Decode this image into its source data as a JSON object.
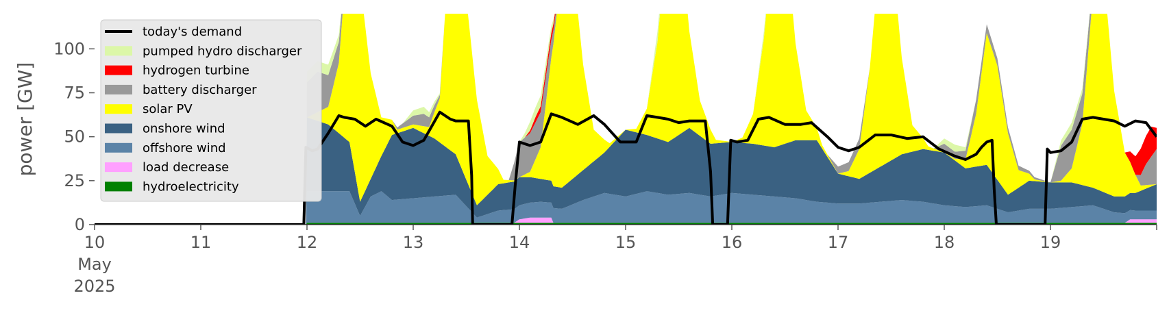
{
  "chart_data": {
    "type": "area",
    "ylabel": "power [GW]",
    "xlabel": "",
    "ylim": [
      0,
      120
    ],
    "xlim": [
      0,
      10
    ],
    "yticks": [
      0,
      25,
      50,
      75,
      100
    ],
    "xticks": [
      {
        "value": 0,
        "lines": [
          "10",
          "May",
          "2025"
        ]
      },
      {
        "value": 1,
        "lines": [
          "11"
        ]
      },
      {
        "value": 2,
        "lines": [
          "12"
        ]
      },
      {
        "value": 3,
        "lines": [
          "13"
        ]
      },
      {
        "value": 4,
        "lines": [
          "14"
        ]
      },
      {
        "value": 5,
        "lines": [
          "15"
        ]
      },
      {
        "value": 6,
        "lines": [
          "16"
        ]
      },
      {
        "value": 7,
        "lines": [
          "17"
        ]
      },
      {
        "value": 8,
        "lines": [
          "18"
        ]
      },
      {
        "value": 9,
        "lines": [
          "19"
        ]
      }
    ],
    "legend_position": "top-left",
    "grid": false,
    "legend": [
      {
        "label": "today's demand",
        "kind": "line",
        "color": "#000000"
      },
      {
        "label": "pumped hydro discharger",
        "kind": "patch",
        "color": "#dcf7a8"
      },
      {
        "label": "hydrogen turbine",
        "kind": "patch",
        "color": "#ff0000"
      },
      {
        "label": "battery discharger",
        "kind": "patch",
        "color": "#999999"
      },
      {
        "label": "solar PV",
        "kind": "patch",
        "color": "#ffff00"
      },
      {
        "label": "onshore wind",
        "kind": "patch",
        "color": "#3a6182"
      },
      {
        "label": "offshore wind",
        "kind": "patch",
        "color": "#5b83a7"
      },
      {
        "label": "load decrease",
        "kind": "patch",
        "color": "#ffa0ff"
      },
      {
        "label": "hydroelectricity",
        "kind": "patch",
        "color": "#008000"
      }
    ],
    "stack_series": [
      {
        "name": "hydroelectricity",
        "color": "#008000",
        "x": [
          0,
          1.99,
          2.0,
          4.0,
          6.0,
          8.0,
          9.0,
          10.0
        ],
        "y": [
          0,
          0,
          1,
          1,
          1,
          1,
          1,
          1
        ]
      },
      {
        "name": "load decrease",
        "color": "#ffa0ff",
        "x": [
          0,
          3.95,
          4.0,
          4.1,
          4.3,
          4.32,
          9.7,
          9.75,
          9.85,
          10.0
        ],
        "y": [
          0,
          0,
          2,
          3,
          3,
          0,
          0,
          2,
          2,
          2
        ]
      },
      {
        "name": "offshore wind",
        "color": "#5b83a7",
        "x": [
          0,
          1.99,
          2.0,
          2.2,
          2.4,
          2.5,
          2.6,
          2.7,
          2.8,
          3.0,
          3.2,
          3.4,
          3.6,
          3.8,
          4.0,
          4.2,
          4.4,
          4.6,
          4.8,
          5.0,
          5.2,
          5.4,
          5.6,
          5.8,
          6.0,
          6.2,
          6.4,
          6.6,
          6.8,
          7.0,
          7.2,
          7.4,
          7.6,
          7.8,
          8.0,
          8.2,
          8.4,
          8.6,
          8.8,
          9.0,
          9.2,
          9.4,
          9.6,
          9.8,
          10.0
        ],
        "y": [
          0,
          0,
          18,
          18,
          18,
          4,
          15,
          18,
          13,
          14,
          15,
          16,
          3,
          7,
          8,
          9,
          8,
          13,
          17,
          15,
          18,
          16,
          17,
          15,
          17,
          16,
          15,
          14,
          12,
          11,
          11,
          12,
          13,
          12,
          10,
          9,
          10,
          6,
          8,
          8,
          9,
          10,
          6,
          5,
          5
        ]
      },
      {
        "name": "onshore wind",
        "color": "#3a6182",
        "x": [
          0,
          1.99,
          2.0,
          2.2,
          2.4,
          2.5,
          2.6,
          2.7,
          2.8,
          3.0,
          3.2,
          3.4,
          3.6,
          3.8,
          4.0,
          4.2,
          4.4,
          4.6,
          4.8,
          5.0,
          5.2,
          5.4,
          5.6,
          5.8,
          6.0,
          6.2,
          6.4,
          6.6,
          6.8,
          7.0,
          7.2,
          7.4,
          7.6,
          7.8,
          8.0,
          8.2,
          8.4,
          8.6,
          8.8,
          9.0,
          9.2,
          9.4,
          9.6,
          9.8,
          10.0
        ],
        "y": [
          0,
          0,
          42,
          38,
          28,
          8,
          10,
          20,
          37,
          40,
          33,
          23,
          7,
          15,
          16,
          13,
          12,
          17,
          23,
          38,
          32,
          30,
          37,
          30,
          29,
          29,
          28,
          33,
          35,
          17,
          14,
          20,
          26,
          30,
          30,
          22,
          23,
          10,
          16,
          15,
          14,
          10,
          9,
          10,
          15
        ]
      },
      {
        "name": "solar PV",
        "color": "#ffff00",
        "x": [
          0,
          1.99,
          2.0,
          2.2,
          2.3,
          2.4,
          2.5,
          2.6,
          2.7,
          2.85,
          3.0,
          3.15,
          3.25,
          3.35,
          3.45,
          3.6,
          3.7,
          3.85,
          4.0,
          4.1,
          4.2,
          4.3,
          4.4,
          4.5,
          4.6,
          4.7,
          4.85,
          5.0,
          5.1,
          5.2,
          5.3,
          5.4,
          5.5,
          5.6,
          5.7,
          5.85,
          6.0,
          6.1,
          6.2,
          6.3,
          6.4,
          6.5,
          6.6,
          6.7,
          6.85,
          7.0,
          7.1,
          7.2,
          7.3,
          7.4,
          7.5,
          7.6,
          7.7,
          7.85,
          8.0,
          8.1,
          8.2,
          8.3,
          8.4,
          8.5,
          8.6,
          8.7,
          8.85,
          9.0,
          9.1,
          9.2,
          9.3,
          9.4,
          9.5,
          9.6,
          9.7,
          9.85,
          10.0
        ],
        "y": [
          0,
          0,
          0,
          10,
          40,
          125,
          125,
          60,
          22,
          2,
          2,
          5,
          25,
          125,
          125,
          60,
          22,
          2,
          0,
          3,
          18,
          70,
          125,
          125,
          60,
          18,
          2,
          0,
          2,
          15,
          55,
          125,
          125,
          55,
          20,
          2,
          0,
          3,
          17,
          60,
          125,
          125,
          55,
          17,
          2,
          0,
          3,
          17,
          60,
          125,
          125,
          55,
          15,
          2,
          0,
          1,
          5,
          30,
          75,
          65,
          35,
          10,
          1,
          0,
          1,
          8,
          35,
          110,
          125,
          60,
          25,
          3,
          0
        ]
      },
      {
        "name": "battery discharger",
        "color": "#999999",
        "x": [
          0,
          1.99,
          2.0,
          2.1,
          2.2,
          2.3,
          2.4,
          2.6,
          2.8,
          3.0,
          3.1,
          3.2,
          3.3,
          3.5,
          3.9,
          4.0,
          4.1,
          4.2,
          4.3,
          4.4,
          6.9,
          7.0,
          7.1,
          7.2,
          7.3,
          7.9,
          8.0,
          8.1,
          8.2,
          8.3,
          8.4,
          9.0,
          9.1,
          9.2,
          9.3,
          9.4,
          9.5,
          9.8,
          9.9,
          10.0
        ],
        "y": [
          0,
          0,
          20,
          23,
          18,
          12,
          0,
          0,
          0,
          5,
          7,
          4,
          0,
          0,
          0,
          20,
          22,
          20,
          10,
          0,
          0,
          4,
          5,
          6,
          0,
          0,
          5,
          4,
          5,
          8,
          5,
          0,
          20,
          22,
          17,
          8,
          0,
          0,
          12,
          20
        ]
      },
      {
        "name": "hydrogen turbine",
        "color": "#ff0000",
        "x": [
          0,
          4.05,
          4.15,
          4.3,
          4.45,
          9.7,
          9.75,
          9.85,
          9.95,
          10.0
        ],
        "y": [
          0,
          0,
          3,
          4,
          0,
          0,
          6,
          15,
          17,
          12
        ]
      },
      {
        "name": "pumped hydro discharger",
        "color": "#dcf7a8",
        "x": [
          0,
          1.99,
          2.0,
          2.1,
          2.2,
          2.3,
          2.4,
          2.9,
          3.0,
          3.1,
          3.2,
          3.3,
          4.0,
          4.1,
          4.2,
          4.3,
          4.35,
          5.2,
          5.3,
          5.4,
          5.5,
          6.2,
          6.3,
          6.4,
          7.4,
          7.9,
          8.0,
          8.1,
          8.2,
          8.3,
          9.0,
          9.1,
          9.2,
          9.3,
          9.4,
          10.0
        ],
        "y": [
          0,
          0,
          6,
          6,
          6,
          4,
          0,
          0,
          3,
          4,
          2,
          0,
          0,
          5,
          6,
          4,
          0,
          0,
          6,
          4,
          0,
          0,
          4,
          0,
          0,
          0,
          3,
          4,
          2,
          0,
          0,
          3,
          4,
          3,
          0,
          0
        ]
      }
    ],
    "series": [
      {
        "name": "today's demand",
        "color": "#000000",
        "x": [
          0,
          1.97,
          1.99,
          2.05,
          2.1,
          2.2,
          2.3,
          2.35,
          2.45,
          2.55,
          2.65,
          2.8,
          2.9,
          3.0,
          3.1,
          3.25,
          3.35,
          3.4,
          3.5,
          3.52,
          3.55,
          3.56,
          3.93,
          3.96,
          4.0,
          4.1,
          4.2,
          4.3,
          4.4,
          4.55,
          4.7,
          4.8,
          4.95,
          5.1,
          5.2,
          5.3,
          5.4,
          5.5,
          5.6,
          5.75,
          5.8,
          5.82,
          5.96,
          5.99,
          6.05,
          6.15,
          6.25,
          6.35,
          6.5,
          6.65,
          6.75,
          6.9,
          7.0,
          7.1,
          7.2,
          7.35,
          7.5,
          7.65,
          7.8,
          7.95,
          8.1,
          8.2,
          8.3,
          8.35,
          8.4,
          8.45,
          8.47,
          8.49,
          8.95,
          8.97,
          9.0,
          9.1,
          9.2,
          9.3,
          9.4,
          9.5,
          9.6,
          9.7,
          9.8,
          9.9,
          10.0
        ],
        "y": [
          0,
          0,
          44,
          42,
          43,
          52,
          62,
          61,
          60,
          56,
          60,
          56,
          47,
          45,
          48,
          64,
          60,
          59,
          59,
          59,
          28,
          0,
          0,
          22,
          47,
          45,
          47,
          63,
          61,
          57,
          62,
          57,
          47,
          47,
          62,
          61,
          60,
          58,
          59,
          59,
          30,
          0,
          0,
          48,
          47,
          48,
          60,
          61,
          57,
          57,
          58,
          50,
          44,
          42,
          44,
          51,
          51,
          49,
          50,
          43,
          39,
          37,
          40,
          44,
          47,
          48,
          20,
          0,
          0,
          43,
          41,
          42,
          47,
          60,
          61,
          60,
          59,
          56,
          59,
          58,
          50
        ]
      }
    ]
  }
}
